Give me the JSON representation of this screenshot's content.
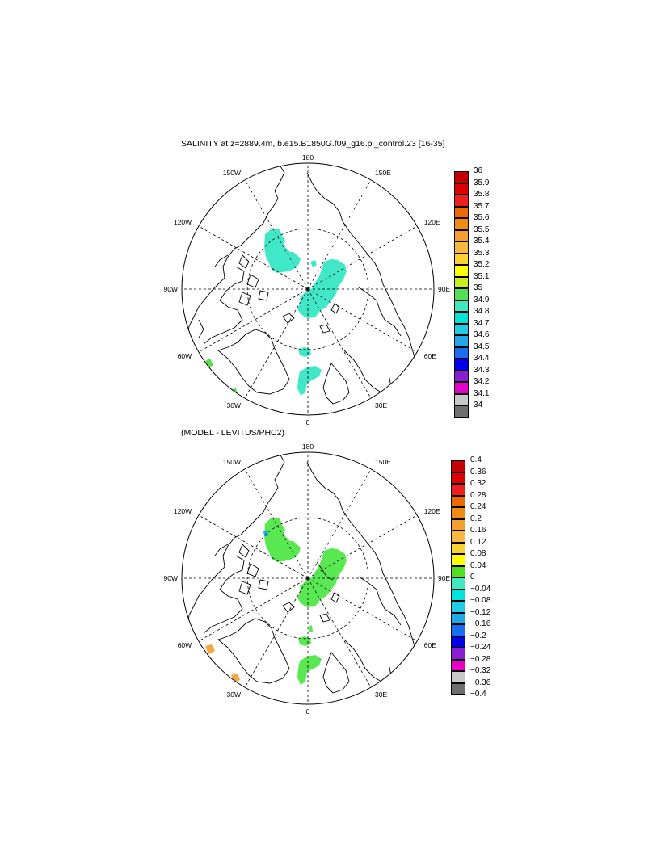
{
  "panels": [
    {
      "id": "salinity",
      "title": "SALINITY at z=2889.4m, b.e15.B1850G.f09_g16.pi_control.23 [16-35]",
      "lon_labels": [
        "180",
        "150E",
        "120E",
        "90E",
        "60E",
        "30E",
        "0",
        "30W",
        "60W",
        "90W",
        "120W",
        "150W"
      ],
      "colorbar": {
        "labels": [
          "36",
          "35.9",
          "35.8",
          "35.7",
          "35.6",
          "35.5",
          "35.4",
          "35.3",
          "35.2",
          "35.1",
          "35",
          "34.9",
          "34.8",
          "34.7",
          "34.6",
          "34.5",
          "34.4",
          "34.3",
          "34.2",
          "34.1",
          "34"
        ],
        "colors": [
          "#c40000",
          "#dd0000",
          "#f01e1e",
          "#ee6a00",
          "#f08c10",
          "#f4a030",
          "#f7b840",
          "#fcd230",
          "#ffff00",
          "#c8f020",
          "#50e050",
          "#40e8c0",
          "#00e4d8",
          "#20cce8",
          "#20a8e8",
          "#1a6cf0",
          "#0000e8",
          "#8a1ed2",
          "#e600c8",
          "#c8c8c8",
          "#6e6e6e"
        ]
      },
      "patch_color": "#40e8c8"
    },
    {
      "id": "difference",
      "title": "(MODEL - LEVITUS/PHC2)",
      "lon_labels": [
        "180",
        "150E",
        "120E",
        "90E",
        "60E",
        "30E",
        "0",
        "30W",
        "60W",
        "90W",
        "120W",
        "150W"
      ],
      "colorbar": {
        "labels": [
          "0.4",
          "0.36",
          "0.32",
          "0.28",
          "0.24",
          "0.2",
          "0.16",
          "0.12",
          "0.08",
          "0.04",
          "0",
          "−0.04",
          "−0.08",
          "−0.12",
          "−0.16",
          "−0.2",
          "−0.24",
          "−0.28",
          "−0.32",
          "−0.36",
          "−0.4"
        ],
        "colors": [
          "#c40000",
          "#dd0000",
          "#f01e1e",
          "#ee6a00",
          "#f08c10",
          "#f4a030",
          "#f7b840",
          "#fcd230",
          "#ffff00",
          "#50e020",
          "#40e8c0",
          "#00e4e0",
          "#20cce8",
          "#20a8e8",
          "#1a6cf0",
          "#0000e8",
          "#8a1ed2",
          "#e600c8",
          "#c8c8c8",
          "#6e6e6e"
        ]
      },
      "patch_color": "#5ae852",
      "patch_color_alt": "#f4a640"
    }
  ]
}
